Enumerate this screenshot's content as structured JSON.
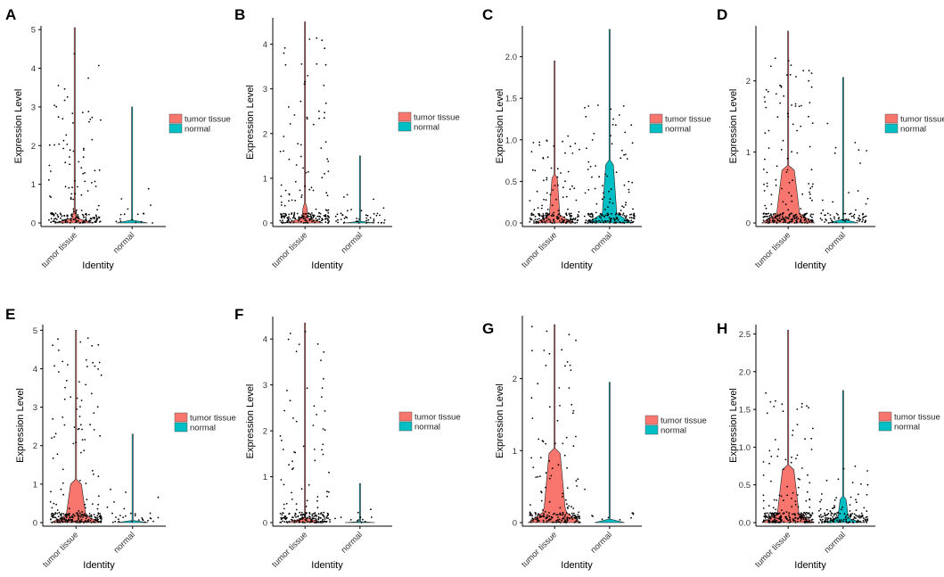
{
  "colors": {
    "tumor": "#F8766D",
    "normal": "#00BFC4",
    "point": "#000000",
    "axis": "#000000"
  },
  "chart_data": [
    {
      "panel": "A",
      "type": "violin",
      "ylabel": "Expression Level",
      "xlabel": "Identity",
      "categories": [
        "tumor tissue",
        "normal"
      ],
      "legend": [
        "tumor tissue",
        "normal"
      ],
      "ylim": [
        0,
        5.05
      ],
      "yticks": [
        0,
        1,
        2,
        3,
        4,
        5
      ],
      "series": [
        {
          "name": "tumor tissue",
          "max": 5.05,
          "core": 0.3,
          "width": 0.11,
          "points": 180,
          "spread": 0.7
        },
        {
          "name": "normal",
          "max": 3.0,
          "core": 0.02,
          "width": 0.02,
          "points": 16,
          "spread": 0.3
        }
      ]
    },
    {
      "panel": "B",
      "type": "violin",
      "ylabel": "Expression Level",
      "xlabel": "Identity",
      "categories": [
        "tumor tissue",
        "normal"
      ],
      "legend": [
        "tumor tissue",
        "normal"
      ],
      "ylim": [
        0,
        4.55
      ],
      "yticks": [
        0,
        1,
        2,
        3,
        4
      ],
      "series": [
        {
          "name": "tumor tissue",
          "max": 4.5,
          "core": 0.4,
          "width": 0.14,
          "points": 200,
          "spread": 0.8
        },
        {
          "name": "normal",
          "max": 1.5,
          "core": 0.02,
          "width": 0.02,
          "points": 45,
          "spread": 0.35
        }
      ]
    },
    {
      "panel": "C",
      "type": "violin",
      "ylabel": "Expression Level",
      "xlabel": "Identity",
      "categories": [
        "tumor tissue",
        "normal"
      ],
      "legend": [
        "tumor tissue",
        "normal"
      ],
      "ylim": [
        0,
        2.35
      ],
      "yticks": [
        0.0,
        0.5,
        1.0,
        1.5,
        2.0
      ],
      "series": [
        {
          "name": "tumor tissue",
          "max": 1.95,
          "core": 0.55,
          "width": 0.22,
          "points": 180,
          "spread": 0.45
        },
        {
          "name": "normal",
          "max": 2.33,
          "core": 0.75,
          "width": 0.3,
          "points": 180,
          "spread": 0.5
        }
      ]
    },
    {
      "panel": "D",
      "type": "violin",
      "ylabel": "Expression Level",
      "xlabel": "Identity",
      "categories": [
        "tumor tissue",
        "normal"
      ],
      "legend": [
        "tumor tissue",
        "normal"
      ],
      "ylim": [
        0,
        2.75
      ],
      "yticks": [
        0,
        1,
        2
      ],
      "series": [
        {
          "name": "tumor tissue",
          "max": 2.7,
          "core": 0.8,
          "width": 0.48,
          "points": 230,
          "spread": 0.7
        },
        {
          "name": "normal",
          "max": 2.05,
          "core": 0.02,
          "width": 0.03,
          "points": 70,
          "spread": 0.55
        }
      ]
    },
    {
      "panel": "E",
      "type": "violin",
      "ylabel": "Expression Level",
      "xlabel": "Identity",
      "categories": [
        "tumor tissue",
        "normal"
      ],
      "legend": [
        "tumor tissue",
        "normal"
      ],
      "ylim": [
        0,
        5.1
      ],
      "yticks": [
        0,
        1,
        2,
        3,
        4,
        5
      ],
      "series": [
        {
          "name": "tumor tissue",
          "max": 5.0,
          "core": 1.1,
          "width": 0.4,
          "points": 260,
          "spread": 1.0
        },
        {
          "name": "normal",
          "max": 2.3,
          "core": 0.02,
          "width": 0.03,
          "points": 30,
          "spread": 0.3
        }
      ]
    },
    {
      "panel": "F",
      "type": "violin",
      "ylabel": "Expression Level",
      "xlabel": "Identity",
      "categories": [
        "tumor tissue",
        "normal"
      ],
      "legend": [
        "tumor tissue",
        "normal"
      ],
      "ylim": [
        0,
        4.45
      ],
      "yticks": [
        0,
        1,
        2,
        3,
        4
      ],
      "series": [
        {
          "name": "tumor tissue",
          "max": 4.35,
          "core": 0.08,
          "width": 0.12,
          "points": 200,
          "spread": 0.9
        },
        {
          "name": "normal",
          "max": 0.85,
          "core": 0.02,
          "width": 0.02,
          "points": 12,
          "spread": 0.3
        }
      ]
    },
    {
      "panel": "G",
      "type": "violin",
      "ylabel": "Expression Level",
      "xlabel": "Identity",
      "categories": [
        "tumor tissue",
        "normal"
      ],
      "legend": [
        "tumor tissue",
        "normal"
      ],
      "ylim": [
        0,
        2.85
      ],
      "yticks": [
        0,
        1,
        2
      ],
      "series": [
        {
          "name": "tumor tissue",
          "max": 2.75,
          "core": 1.0,
          "width": 0.45,
          "points": 200,
          "spread": 0.8
        },
        {
          "name": "normal",
          "max": 1.95,
          "core": 0.02,
          "width": 0.02,
          "points": 10,
          "spread": 0.3
        }
      ]
    },
    {
      "panel": "H",
      "type": "violin",
      "ylabel": "Expression Level",
      "xlabel": "Identity",
      "categories": [
        "tumor tissue",
        "normal"
      ],
      "legend": [
        "tumor tissue",
        "normal"
      ],
      "ylim": [
        0,
        2.6
      ],
      "yticks": [
        0.0,
        0.5,
        1.0,
        1.5,
        2.0,
        2.5
      ],
      "series": [
        {
          "name": "tumor tissue",
          "max": 2.55,
          "core": 0.75,
          "width": 0.45,
          "points": 240,
          "spread": 0.55
        },
        {
          "name": "normal",
          "max": 1.75,
          "core": 0.35,
          "width": 0.22,
          "points": 150,
          "spread": 0.35
        }
      ]
    }
  ]
}
